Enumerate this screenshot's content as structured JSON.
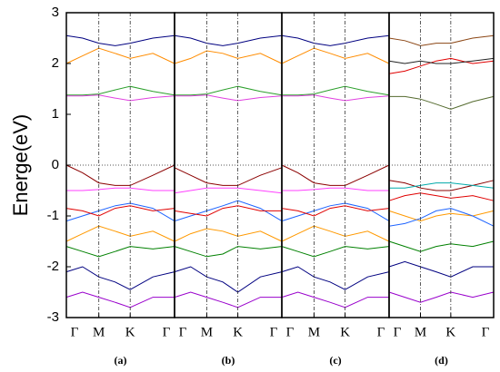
{
  "chart_data": [
    {
      "type": "line",
      "ylabel": "Energe(eV)",
      "xlabel": "(a)",
      "x": [
        0,
        0.15,
        0.3,
        0.45,
        0.59,
        0.8,
        1
      ],
      "xlim": [
        0,
        1
      ],
      "xticks": [
        {
          "value": 0,
          "label": "Γ"
        },
        {
          "value": 0.3,
          "label": "M"
        },
        {
          "value": 0.59,
          "label": "K"
        },
        {
          "value": 1,
          "label": "Γ"
        }
      ],
      "ylim": [
        -3,
        3
      ],
      "yticks": [
        -3,
        -2,
        -1,
        0,
        1,
        2,
        3
      ],
      "fermi_level": 0,
      "series": [
        {
          "color": "#2ca02c",
          "values": [
            1.38,
            1.38,
            1.4,
            1.48,
            1.55,
            1.45,
            1.38
          ]
        },
        {
          "color": "#e040e0",
          "values": [
            1.36,
            1.36,
            1.38,
            1.32,
            1.27,
            1.33,
            1.36
          ]
        },
        {
          "color": "#ff8c00",
          "values": [
            2.0,
            2.15,
            2.3,
            2.2,
            2.1,
            2.2,
            2.0
          ]
        },
        {
          "color": "#000080",
          "values": [
            2.55,
            2.5,
            2.4,
            2.35,
            2.4,
            2.5,
            2.55
          ]
        },
        {
          "color": "#8b0000",
          "values": [
            0,
            -0.15,
            -0.35,
            -0.4,
            -0.4,
            -0.2,
            0
          ]
        },
        {
          "color": "#ff40ff",
          "values": [
            -0.5,
            -0.5,
            -0.48,
            -0.45,
            -0.45,
            -0.5,
            -0.5
          ]
        },
        {
          "color": "#1e64ff",
          "values": [
            -1.1,
            -1.0,
            -0.9,
            -0.8,
            -0.75,
            -0.85,
            -1.1
          ]
        },
        {
          "color": "#e00000",
          "values": [
            -0.85,
            -0.9,
            -1.0,
            -0.85,
            -0.8,
            -0.9,
            -0.85
          ]
        },
        {
          "color": "#ff9900",
          "values": [
            -1.5,
            -1.35,
            -1.2,
            -1.3,
            -1.4,
            -1.3,
            -1.5
          ]
        },
        {
          "color": "#008000",
          "values": [
            -1.6,
            -1.7,
            -1.8,
            -1.7,
            -1.6,
            -1.65,
            -1.6
          ]
        },
        {
          "color": "#000080",
          "values": [
            -2.1,
            -2.0,
            -2.2,
            -2.3,
            -2.45,
            -2.2,
            -2.1
          ]
        },
        {
          "color": "#9900cc",
          "values": [
            -2.6,
            -2.5,
            -2.6,
            -2.7,
            -2.8,
            -2.6,
            -2.6
          ]
        }
      ]
    },
    {
      "type": "line",
      "xlabel": "(b)",
      "x": [
        0,
        0.15,
        0.3,
        0.45,
        0.59,
        0.8,
        1
      ],
      "xlim": [
        0,
        1
      ],
      "xticks": [
        {
          "value": 0,
          "label": "Γ"
        },
        {
          "value": 0.3,
          "label": "M"
        },
        {
          "value": 0.59,
          "label": "K"
        },
        {
          "value": 1,
          "label": "Γ"
        }
      ],
      "ylim": [
        -3,
        3
      ],
      "fermi_level": 0,
      "series": [
        {
          "color": "#2ca02c",
          "values": [
            1.38,
            1.38,
            1.4,
            1.48,
            1.55,
            1.45,
            1.38
          ]
        },
        {
          "color": "#e040e0",
          "values": [
            1.36,
            1.36,
            1.38,
            1.32,
            1.27,
            1.33,
            1.36
          ]
        },
        {
          "color": "#ff8c00",
          "values": [
            2.0,
            2.1,
            2.25,
            2.2,
            2.1,
            2.2,
            2.0
          ]
        },
        {
          "color": "#000080",
          "values": [
            2.55,
            2.5,
            2.4,
            2.35,
            2.4,
            2.5,
            2.55
          ]
        },
        {
          "color": "#8b0000",
          "values": [
            -0.05,
            -0.2,
            -0.35,
            -0.4,
            -0.4,
            -0.2,
            -0.05
          ]
        },
        {
          "color": "#ff40ff",
          "values": [
            -0.55,
            -0.5,
            -0.45,
            -0.45,
            -0.45,
            -0.5,
            -0.55
          ]
        },
        {
          "color": "#1e64ff",
          "values": [
            -1.1,
            -1.0,
            -0.9,
            -0.8,
            -0.7,
            -0.85,
            -1.1
          ]
        },
        {
          "color": "#e00000",
          "values": [
            -0.9,
            -0.95,
            -1.0,
            -0.85,
            -0.8,
            -0.9,
            -0.9
          ]
        },
        {
          "color": "#ff9900",
          "values": [
            -1.5,
            -1.35,
            -1.25,
            -1.3,
            -1.4,
            -1.3,
            -1.5
          ]
        },
        {
          "color": "#008000",
          "values": [
            -1.6,
            -1.7,
            -1.8,
            -1.75,
            -1.6,
            -1.65,
            -1.6
          ]
        },
        {
          "color": "#000080",
          "values": [
            -2.1,
            -2.0,
            -2.2,
            -2.3,
            -2.5,
            -2.2,
            -2.1
          ]
        },
        {
          "color": "#9900cc",
          "values": [
            -2.6,
            -2.5,
            -2.6,
            -2.7,
            -2.8,
            -2.6,
            -2.6
          ]
        }
      ]
    },
    {
      "type": "line",
      "xlabel": "(c)",
      "x": [
        0,
        0.15,
        0.3,
        0.45,
        0.59,
        0.8,
        1
      ],
      "xlim": [
        0,
        1
      ],
      "xticks": [
        {
          "value": 0,
          "label": "Γ"
        },
        {
          "value": 0.3,
          "label": "M"
        },
        {
          "value": 0.59,
          "label": "K"
        },
        {
          "value": 1,
          "label": "Γ"
        }
      ],
      "ylim": [
        -3,
        3
      ],
      "fermi_level": 0,
      "series": [
        {
          "color": "#2ca02c",
          "values": [
            1.38,
            1.38,
            1.4,
            1.48,
            1.55,
            1.45,
            1.38
          ]
        },
        {
          "color": "#e040e0",
          "values": [
            1.36,
            1.36,
            1.38,
            1.32,
            1.27,
            1.33,
            1.36
          ]
        },
        {
          "color": "#ff8c00",
          "values": [
            2.0,
            2.15,
            2.3,
            2.2,
            2.1,
            2.2,
            2.0
          ]
        },
        {
          "color": "#000080",
          "values": [
            2.55,
            2.5,
            2.4,
            2.35,
            2.4,
            2.5,
            2.55
          ]
        },
        {
          "color": "#8b0000",
          "values": [
            0,
            -0.15,
            -0.35,
            -0.4,
            -0.4,
            -0.2,
            0
          ]
        },
        {
          "color": "#ff40ff",
          "values": [
            -0.5,
            -0.5,
            -0.48,
            -0.45,
            -0.45,
            -0.5,
            -0.5
          ]
        },
        {
          "color": "#1e64ff",
          "values": [
            -1.1,
            -1.0,
            -0.9,
            -0.8,
            -0.75,
            -0.85,
            -1.1
          ]
        },
        {
          "color": "#e00000",
          "values": [
            -0.85,
            -0.9,
            -1.0,
            -0.85,
            -0.8,
            -0.9,
            -0.85
          ]
        },
        {
          "color": "#ff9900",
          "values": [
            -1.5,
            -1.35,
            -1.2,
            -1.3,
            -1.4,
            -1.3,
            -1.5
          ]
        },
        {
          "color": "#008000",
          "values": [
            -1.6,
            -1.7,
            -1.8,
            -1.7,
            -1.6,
            -1.65,
            -1.6
          ]
        },
        {
          "color": "#000080",
          "values": [
            -2.1,
            -2.0,
            -2.2,
            -2.3,
            -2.45,
            -2.2,
            -2.1
          ]
        },
        {
          "color": "#9900cc",
          "values": [
            -2.6,
            -2.5,
            -2.6,
            -2.7,
            -2.8,
            -2.6,
            -2.6
          ]
        }
      ]
    },
    {
      "type": "line",
      "xlabel": "(d)",
      "x": [
        0,
        0.15,
        0.3,
        0.45,
        0.59,
        0.8,
        1
      ],
      "xlim": [
        0,
        1
      ],
      "xticks": [
        {
          "value": 0,
          "label": "Γ"
        },
        {
          "value": 0.3,
          "label": "M"
        },
        {
          "value": 0.59,
          "label": "K"
        },
        {
          "value": 1,
          "label": "Γ"
        }
      ],
      "ylim": [
        -3,
        3
      ],
      "fermi_level": 0,
      "series": [
        {
          "color": "#556b2f",
          "values": [
            1.35,
            1.35,
            1.3,
            1.2,
            1.1,
            1.25,
            1.35
          ]
        },
        {
          "color": "#e00000",
          "values": [
            1.8,
            1.85,
            1.95,
            2.05,
            2.1,
            2.0,
            2.05
          ]
        },
        {
          "color": "#222222",
          "values": [
            2.05,
            2.0,
            2.05,
            2.0,
            2.0,
            2.05,
            2.1
          ]
        },
        {
          "color": "#8b4513",
          "values": [
            2.5,
            2.45,
            2.35,
            2.4,
            2.4,
            2.5,
            2.55
          ]
        },
        {
          "color": "#8b0000",
          "values": [
            -0.3,
            -0.35,
            -0.45,
            -0.5,
            -0.5,
            -0.4,
            -0.3
          ]
        },
        {
          "color": "#00aaaa",
          "values": [
            -0.45,
            -0.45,
            -0.4,
            -0.35,
            -0.35,
            -0.4,
            -0.45
          ]
        },
        {
          "color": "#e00000",
          "values": [
            -0.7,
            -0.6,
            -0.55,
            -0.6,
            -0.65,
            -0.6,
            -0.7
          ]
        },
        {
          "color": "#ff9900",
          "values": [
            -0.9,
            -1.0,
            -1.1,
            -1.0,
            -0.95,
            -1.0,
            -0.9
          ]
        },
        {
          "color": "#1e64ff",
          "values": [
            -1.2,
            -1.15,
            -1.05,
            -0.9,
            -0.85,
            -1.0,
            -1.2
          ]
        },
        {
          "color": "#008000",
          "values": [
            -1.5,
            -1.6,
            -1.7,
            -1.6,
            -1.55,
            -1.6,
            -1.5
          ]
        },
        {
          "color": "#000080",
          "values": [
            -2.0,
            -1.9,
            -2.0,
            -2.1,
            -2.2,
            -2.0,
            -2.0
          ]
        },
        {
          "color": "#9900cc",
          "values": [
            -2.5,
            -2.6,
            -2.7,
            -2.6,
            -2.5,
            -2.6,
            -2.5
          ]
        }
      ]
    }
  ]
}
